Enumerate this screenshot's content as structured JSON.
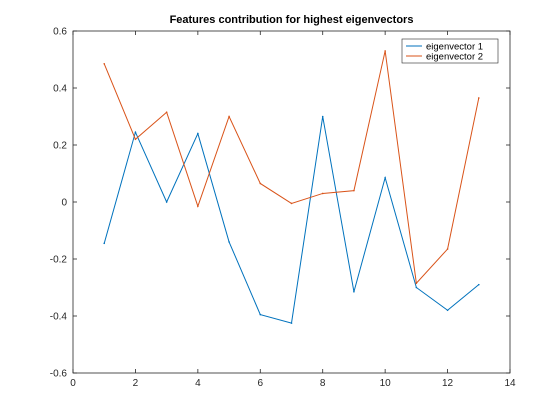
{
  "chart_data": {
    "type": "line",
    "title": "Features contribution for highest eigenvectors",
    "xlabel": "",
    "ylabel": "",
    "xlim": [
      0,
      14
    ],
    "ylim": [
      -0.6,
      0.6
    ],
    "xticks": [
      0,
      2,
      4,
      6,
      8,
      10,
      12,
      14
    ],
    "xtick_labels": [
      "0",
      "2",
      "4",
      "6",
      "8",
      "10",
      "12",
      "14"
    ],
    "yticks": [
      -0.6,
      -0.4,
      -0.2,
      0,
      0.2,
      0.4,
      0.6
    ],
    "ytick_labels": [
      "-0.6",
      "-0.4",
      "-0.2",
      "0",
      "0.2",
      "0.4",
      "0.6"
    ],
    "grid": false,
    "legend_position": "top-right",
    "x": [
      1,
      2,
      3,
      4,
      5,
      6,
      7,
      8,
      9,
      10,
      11,
      12,
      13
    ],
    "series": [
      {
        "name": "eigenvector 1",
        "color": "#0072BD",
        "values": [
          -0.145,
          0.245,
          0.0,
          0.24,
          -0.14,
          -0.395,
          -0.425,
          0.3,
          -0.315,
          0.085,
          -0.3,
          -0.38,
          -0.29
        ]
      },
      {
        "name": "eigenvector 2",
        "color": "#D95319",
        "values": [
          0.485,
          0.22,
          0.315,
          -0.015,
          0.3,
          0.065,
          -0.005,
          0.03,
          0.04,
          0.53,
          -0.285,
          -0.165,
          0.365
        ]
      }
    ]
  }
}
